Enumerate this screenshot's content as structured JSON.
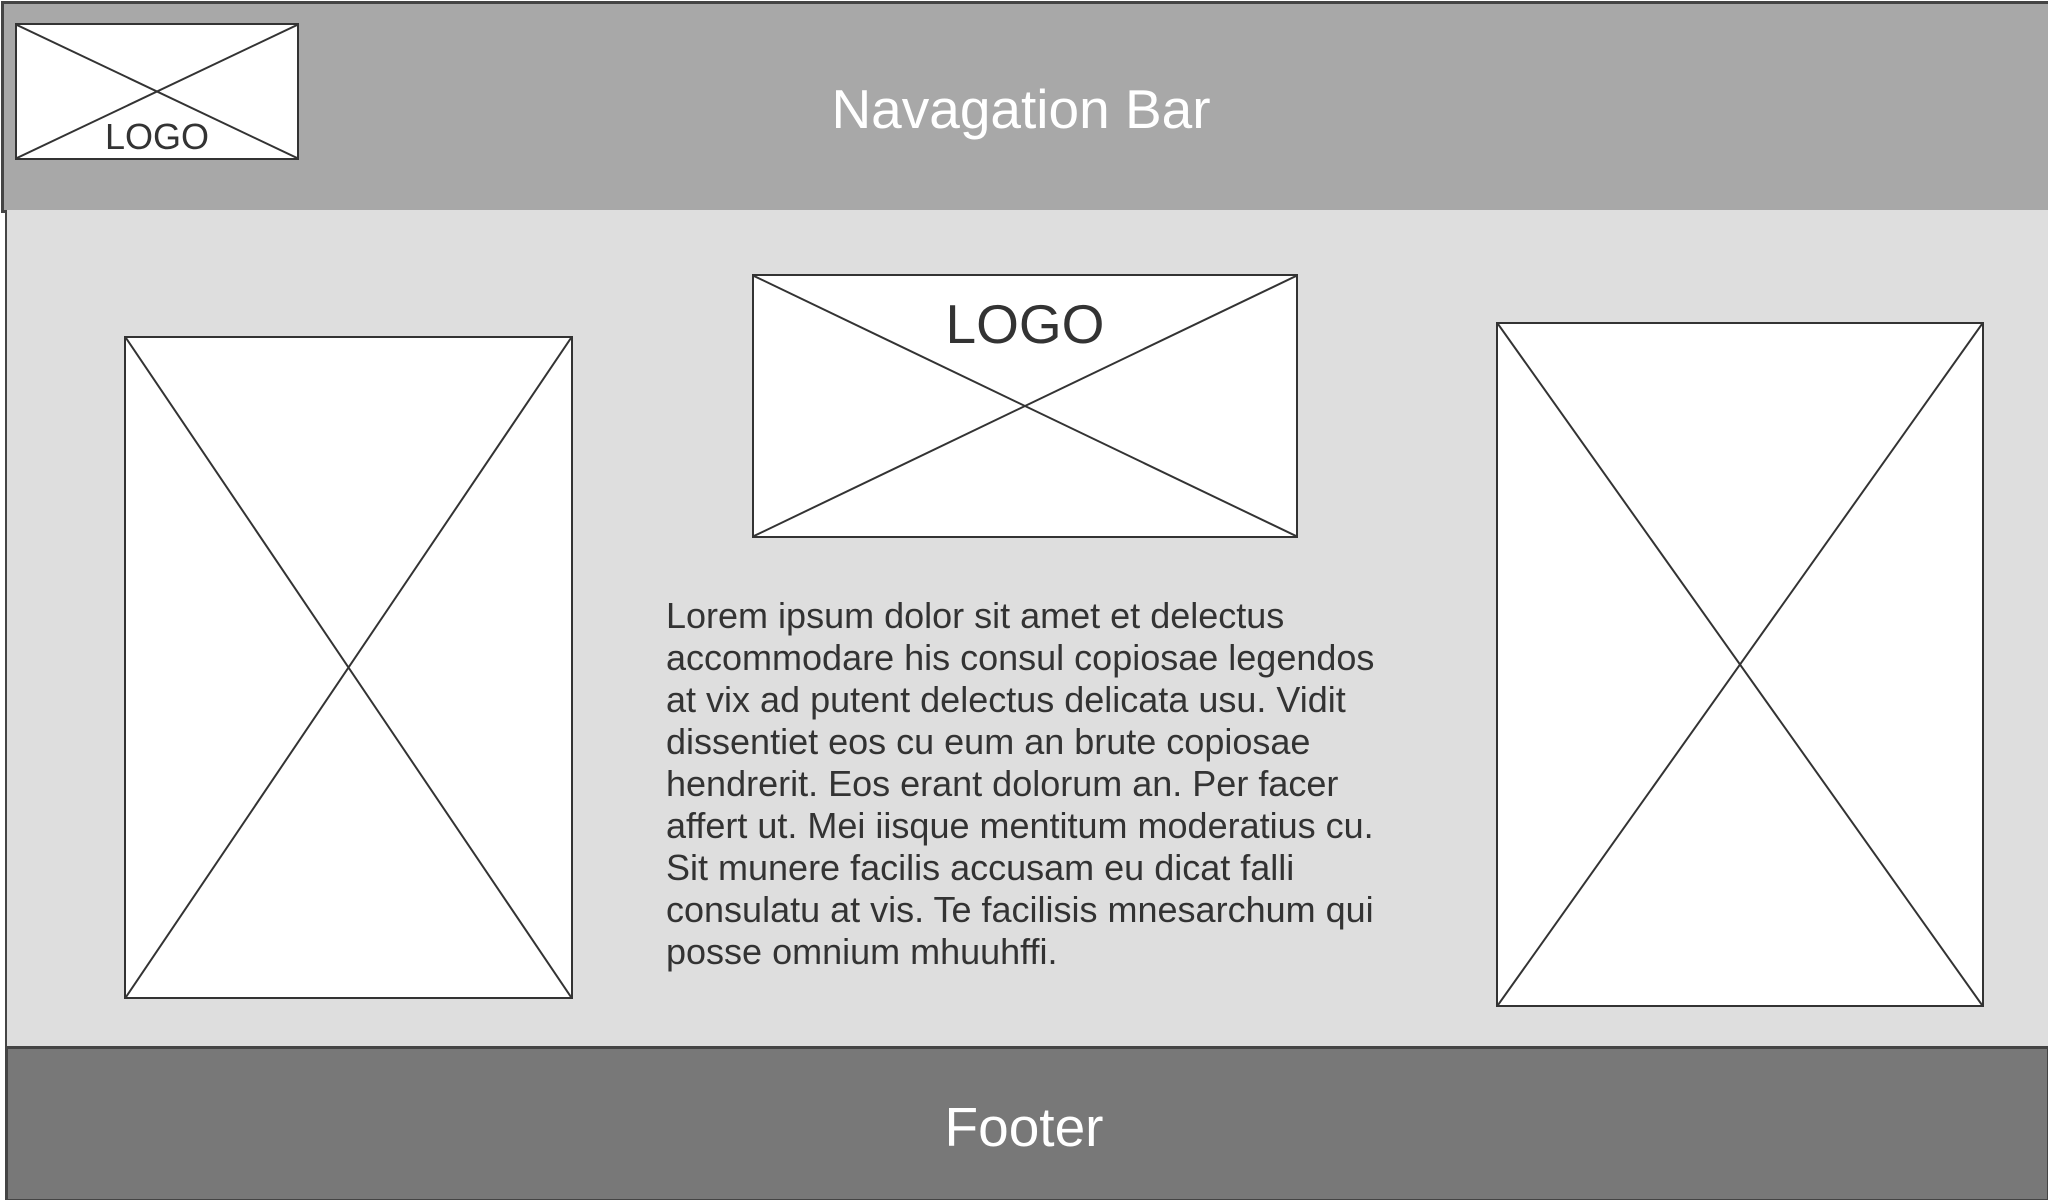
{
  "navbar": {
    "title": "Navagation Bar",
    "logo_label": "LOGO",
    "logo_icon": "image-placeholder-icon"
  },
  "main": {
    "left_image_icon": "image-placeholder-icon",
    "center_logo_label": "LOGO",
    "center_logo_icon": "image-placeholder-icon",
    "body_text": "Lorem ipsum dolor sit amet et delectus accommodare his consul copiosae legendos at vix ad putent delectus delicata usu. Vidit dissentiet eos cu eum an brute copiosae hendrerit. Eos erant dolorum an. Per facer affert ut. Mei iisque mentitum moderatius cu. Sit munere facilis accusam eu dicat falli consulatu at vis. Te facilisis mnesarchum qui posse omnium mhuuhffi.",
    "right_image_icon": "image-placeholder-icon"
  },
  "footer": {
    "title": "Footer"
  },
  "colors": {
    "navbar_bg": "#a8a8a8",
    "content_bg": "#dedede",
    "footer_bg": "#787878",
    "border": "#444444",
    "text_dark": "#333333",
    "text_light": "#ffffff"
  }
}
